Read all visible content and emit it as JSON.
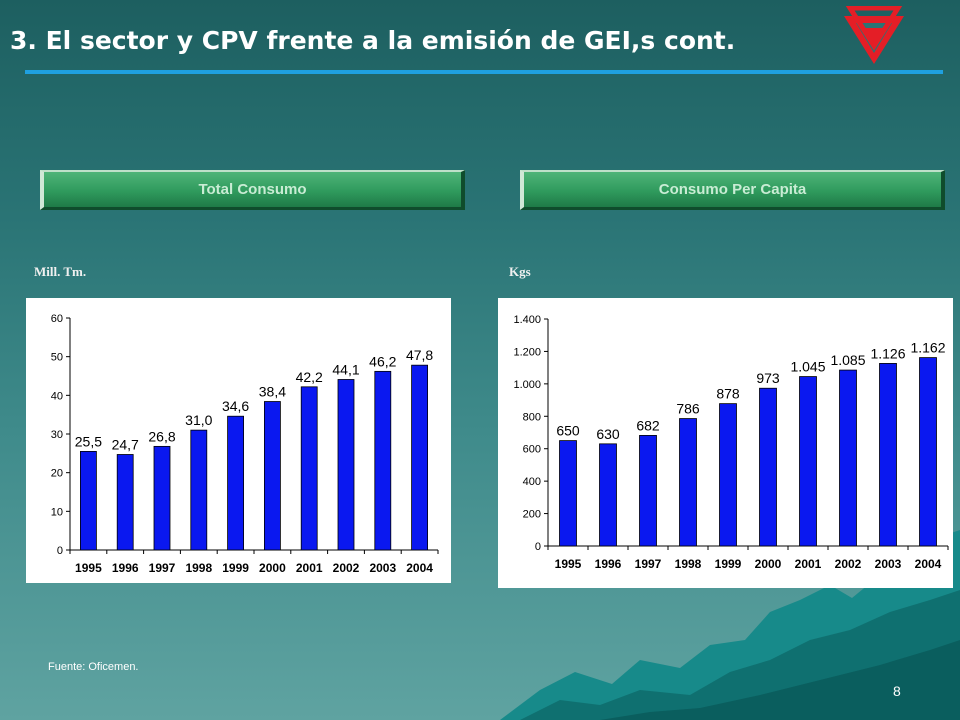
{
  "slide": {
    "title": "3. El sector y CPV frente a la emisión de GEI,s cont.",
    "source": "Fuente: Oficemen.",
    "page_number": "8"
  },
  "panels": [
    {
      "header": "Total Consumo",
      "unit_label": "Mill. Tm."
    },
    {
      "header": "Consumo Per Capita",
      "unit_label": "Kgs"
    }
  ],
  "colors": {
    "bar": "#0a18f0",
    "title_rule": "#1fa0e0",
    "logo": "#e41e26"
  },
  "chart_data": [
    {
      "type": "bar",
      "categories": [
        "1995",
        "1996",
        "1997",
        "1998",
        "1999",
        "2000",
        "2001",
        "2002",
        "2003",
        "2004"
      ],
      "values": [
        25.5,
        24.7,
        26.8,
        31.0,
        34.6,
        38.4,
        42.2,
        44.1,
        46.2,
        47.8
      ],
      "data_labels": [
        "25,5",
        "24,7",
        "26,8",
        "31,0",
        "34,6",
        "38,4",
        "42,2",
        "44,1",
        "46,2",
        "47,8"
      ],
      "ylim": [
        0,
        60
      ],
      "yticks": [
        0,
        10,
        20,
        30,
        40,
        50,
        60
      ],
      "ytick_labels": [
        "0",
        "10",
        "20",
        "30",
        "40",
        "50",
        "60"
      ],
      "title": "",
      "xlabel": "",
      "ylabel": "Mill. Tm.",
      "grid": false
    },
    {
      "type": "bar",
      "categories": [
        "1995",
        "1996",
        "1997",
        "1998",
        "1999",
        "2000",
        "2001",
        "2002",
        "2003",
        "2004"
      ],
      "values": [
        650,
        630,
        682,
        786,
        878,
        973,
        1045,
        1085,
        1126,
        1162
      ],
      "data_labels": [
        "650",
        "630",
        "682",
        "786",
        "878",
        "973",
        "1.045",
        "1.085",
        "1.126",
        "1.162"
      ],
      "ylim": [
        0,
        1400
      ],
      "yticks": [
        0,
        200,
        400,
        600,
        800,
        1000,
        1200,
        1400
      ],
      "ytick_labels": [
        "0",
        "200",
        "400",
        "600",
        "800",
        "1.000",
        "1.200",
        "1.400"
      ],
      "title": "",
      "xlabel": "",
      "ylabel": "Kgs",
      "grid": false
    }
  ]
}
